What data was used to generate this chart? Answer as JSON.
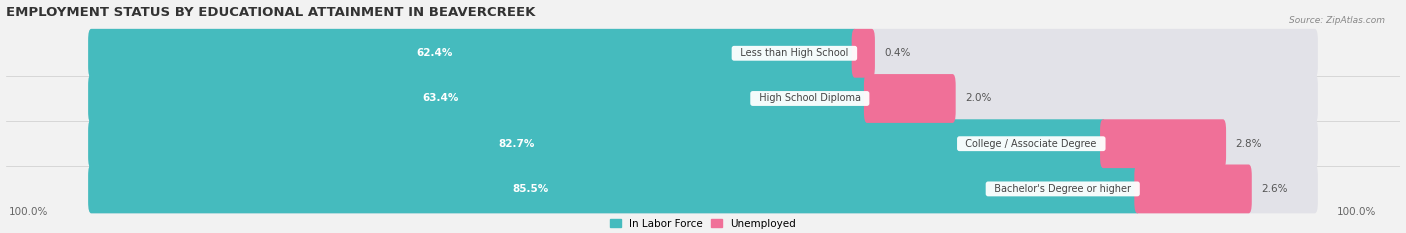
{
  "title": "EMPLOYMENT STATUS BY EDUCATIONAL ATTAINMENT IN BEAVERCREEK",
  "source": "Source: ZipAtlas.com",
  "categories": [
    "Less than High School",
    "High School Diploma",
    "College / Associate Degree",
    "Bachelor's Degree or higher"
  ],
  "labor_force_pct": [
    62.4,
    63.4,
    82.7,
    85.5
  ],
  "unemployed_pct": [
    0.4,
    2.0,
    2.8,
    2.6
  ],
  "labor_force_color": "#45BBBE",
  "unemployed_color": "#F07098",
  "background_color": "#f2f2f2",
  "bar_bg_color": "#e2e2e8",
  "title_fontsize": 9.5,
  "label_fontsize": 7.5,
  "legend_fontsize": 7.5,
  "axis_label_fontsize": 7.5,
  "x_left_label": "100.0%",
  "x_right_label": "100.0%"
}
